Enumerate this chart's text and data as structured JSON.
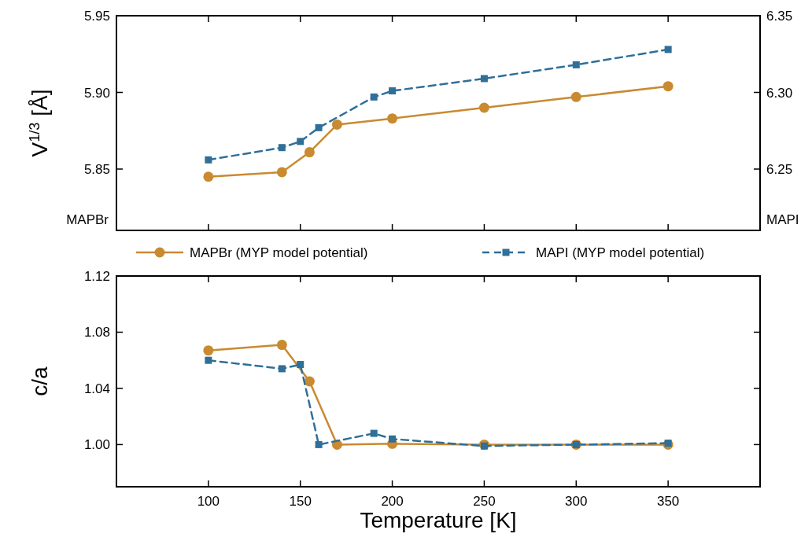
{
  "chart_data": [
    {
      "type": "line",
      "ylabel": "V$^{1/3}$ [Å]",
      "annotations": [
        "MAPBr",
        "MAPI"
      ],
      "xlim": [
        50,
        400
      ],
      "xticks": [
        100,
        150,
        200,
        250,
        300,
        350
      ],
      "ylim": [
        5.81,
        5.95
      ],
      "yticks": [
        5.85,
        {
          "value": 5.9,
          "label": "5.90"
        },
        5.95
      ],
      "y2lim": [
        6.21,
        6.35
      ],
      "y2ticks": [
        6.25,
        {
          "value": 6.3,
          "label": "6.30"
        },
        6.35
      ],
      "tick_labels": "y",
      "legend": "bottom",
      "grid": false,
      "series": [
        {
          "name": "MAPBr (MYP model potential)",
          "color": "#c98a30",
          "marker": "circle",
          "line_style": "solid",
          "x": [
            100,
            140,
            155,
            170,
            200,
            250,
            300,
            350
          ],
          "values": [
            5.845,
            5.848,
            5.861,
            5.879,
            5.883,
            5.89,
            5.897,
            5.904
          ]
        },
        {
          "name": "MAPI (MYP model potential)",
          "color": "#2f6f98",
          "marker": "square",
          "line_style": "dashed",
          "axis": "y2",
          "x": [
            100,
            140,
            150,
            160,
            190,
            200,
            250,
            300,
            350
          ],
          "values": [
            6.256,
            6.264,
            6.268,
            6.277,
            6.297,
            6.301,
            6.309,
            6.318,
            6.328
          ]
        }
      ]
    },
    {
      "type": "line",
      "xlabel": "Temperature [K]",
      "ylabel": "c/a",
      "xlim": [
        50,
        400
      ],
      "xticks": [
        100,
        150,
        200,
        250,
        300,
        350
      ],
      "ylim": [
        0.97,
        1.12
      ],
      "yticks": [
        {
          "value": 1,
          "label": "1.00"
        },
        1.04,
        1.08,
        1.12
      ],
      "legend": false,
      "grid": false,
      "series": [
        {
          "color": "#c98a30",
          "marker": "circle",
          "line_style": "solid",
          "x": [
            100,
            140,
            155,
            170,
            200,
            250,
            300,
            350
          ],
          "values": [
            1.067,
            1.071,
            1.045,
            1.0,
            1.0006,
            1.0,
            1.0,
            1.0
          ]
        },
        {
          "color": "#2f6f98",
          "marker": "square",
          "line_style": "dashed",
          "x": [
            100,
            140,
            150,
            160,
            190,
            200,
            250,
            300,
            350
          ],
          "values": [
            1.06,
            1.054,
            1.057,
            1.0,
            1.008,
            1.004,
            0.999,
            1.0,
            1.001
          ]
        }
      ]
    }
  ]
}
